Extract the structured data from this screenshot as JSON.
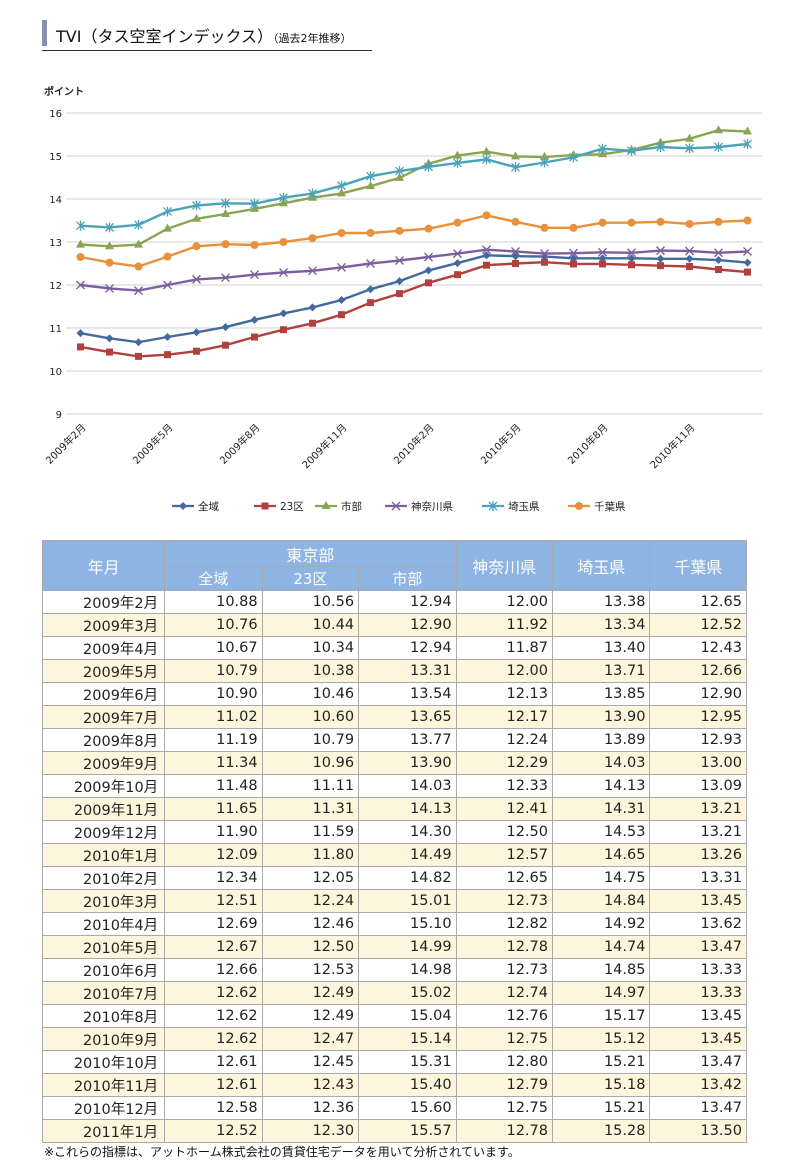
{
  "title": {
    "main": "TVI（タス空室インデックス）",
    "sub": "（過去2年推移）"
  },
  "chart_data": {
    "type": "line",
    "ylabel": "ポイント",
    "ylim": [
      9,
      16
    ],
    "yticks": [
      9,
      10,
      11,
      12,
      13,
      14,
      15,
      16
    ],
    "grid": true,
    "legend_position": "bottom",
    "x": [
      "2009年2月",
      "2009年3月",
      "2009年4月",
      "2009年5月",
      "2009年6月",
      "2009年7月",
      "2009年8月",
      "2009年9月",
      "2009年10月",
      "2009年11月",
      "2009年12月",
      "2010年1月",
      "2010年2月",
      "2010年3月",
      "2010年4月",
      "2010年5月",
      "2010年6月",
      "2010年7月",
      "2010年8月",
      "2010年9月",
      "2010年10月",
      "2010年11月",
      "2010年12月",
      "2011年1月"
    ],
    "xtick_labels": [
      "2009年2月",
      "2009年5月",
      "2009年8月",
      "2009年11月",
      "2010年2月",
      "2010年5月",
      "2010年8月",
      "2010年11月"
    ],
    "series": [
      {
        "name": "全域",
        "color": "#426a9c",
        "marker": "diamond",
        "values": [
          10.88,
          10.76,
          10.67,
          10.79,
          10.9,
          11.02,
          11.19,
          11.34,
          11.48,
          11.65,
          11.9,
          12.09,
          12.34,
          12.51,
          12.69,
          12.67,
          12.66,
          12.62,
          12.62,
          12.62,
          12.61,
          12.61,
          12.58,
          12.52
        ]
      },
      {
        "name": "23区",
        "color": "#b0413e",
        "marker": "square",
        "values": [
          10.56,
          10.44,
          10.34,
          10.38,
          10.46,
          10.6,
          10.79,
          10.96,
          11.11,
          11.31,
          11.59,
          11.8,
          12.05,
          12.24,
          12.46,
          12.5,
          12.53,
          12.49,
          12.49,
          12.47,
          12.45,
          12.43,
          12.36,
          12.3
        ]
      },
      {
        "name": "市部",
        "color": "#8aa552",
        "marker": "triangle",
        "values": [
          12.94,
          12.9,
          12.94,
          13.31,
          13.54,
          13.65,
          13.77,
          13.9,
          14.03,
          14.13,
          14.3,
          14.49,
          14.82,
          15.01,
          15.1,
          14.99,
          14.98,
          15.02,
          15.04,
          15.14,
          15.31,
          15.4,
          15.6,
          15.57
        ]
      },
      {
        "name": "神奈川県",
        "color": "#7b5f9e",
        "marker": "x",
        "values": [
          12.0,
          11.92,
          11.87,
          12.0,
          12.13,
          12.17,
          12.24,
          12.29,
          12.33,
          12.41,
          12.5,
          12.57,
          12.65,
          12.73,
          12.82,
          12.78,
          12.73,
          12.74,
          12.76,
          12.75,
          12.8,
          12.79,
          12.75,
          12.78
        ]
      },
      {
        "name": "埼玉県",
        "color": "#4aa3b8",
        "marker": "star",
        "values": [
          13.38,
          13.34,
          13.4,
          13.71,
          13.85,
          13.9,
          13.89,
          14.03,
          14.13,
          14.31,
          14.53,
          14.65,
          14.75,
          14.84,
          14.92,
          14.74,
          14.85,
          14.97,
          15.17,
          15.12,
          15.21,
          15.18,
          15.21,
          15.28
        ]
      },
      {
        "name": "千葉県",
        "color": "#e8913a",
        "marker": "circle",
        "values": [
          12.65,
          12.52,
          12.43,
          12.66,
          12.9,
          12.95,
          12.93,
          13.0,
          13.09,
          13.21,
          13.21,
          13.26,
          13.31,
          13.45,
          13.62,
          13.47,
          13.33,
          13.33,
          13.45,
          13.45,
          13.47,
          13.42,
          13.47,
          13.5
        ]
      }
    ]
  },
  "table": {
    "month_header": "年月",
    "tokyo_header": "東京部",
    "tokyo_sub": [
      "全域",
      "23区",
      "市部"
    ],
    "pref_headers": [
      "神奈川県",
      "埼玉県",
      "千葉県"
    ],
    "rows": [
      [
        "2009年2月",
        "10.88",
        "10.56",
        "12.94",
        "12.00",
        "13.38",
        "12.65"
      ],
      [
        "2009年3月",
        "10.76",
        "10.44",
        "12.90",
        "11.92",
        "13.34",
        "12.52"
      ],
      [
        "2009年4月",
        "10.67",
        "10.34",
        "12.94",
        "11.87",
        "13.40",
        "12.43"
      ],
      [
        "2009年5月",
        "10.79",
        "10.38",
        "13.31",
        "12.00",
        "13.71",
        "12.66"
      ],
      [
        "2009年6月",
        "10.90",
        "10.46",
        "13.54",
        "12.13",
        "13.85",
        "12.90"
      ],
      [
        "2009年7月",
        "11.02",
        "10.60",
        "13.65",
        "12.17",
        "13.90",
        "12.95"
      ],
      [
        "2009年8月",
        "11.19",
        "10.79",
        "13.77",
        "12.24",
        "13.89",
        "12.93"
      ],
      [
        "2009年9月",
        "11.34",
        "10.96",
        "13.90",
        "12.29",
        "14.03",
        "13.00"
      ],
      [
        "2009年10月",
        "11.48",
        "11.11",
        "14.03",
        "12.33",
        "14.13",
        "13.09"
      ],
      [
        "2009年11月",
        "11.65",
        "11.31",
        "14.13",
        "12.41",
        "14.31",
        "13.21"
      ],
      [
        "2009年12月",
        "11.90",
        "11.59",
        "14.30",
        "12.50",
        "14.53",
        "13.21"
      ],
      [
        "2010年1月",
        "12.09",
        "11.80",
        "14.49",
        "12.57",
        "14.65",
        "13.26"
      ],
      [
        "2010年2月",
        "12.34",
        "12.05",
        "14.82",
        "12.65",
        "14.75",
        "13.31"
      ],
      [
        "2010年3月",
        "12.51",
        "12.24",
        "15.01",
        "12.73",
        "14.84",
        "13.45"
      ],
      [
        "2010年4月",
        "12.69",
        "12.46",
        "15.10",
        "12.82",
        "14.92",
        "13.62"
      ],
      [
        "2010年5月",
        "12.67",
        "12.50",
        "14.99",
        "12.78",
        "14.74",
        "13.47"
      ],
      [
        "2010年6月",
        "12.66",
        "12.53",
        "14.98",
        "12.73",
        "14.85",
        "13.33"
      ],
      [
        "2010年7月",
        "12.62",
        "12.49",
        "15.02",
        "12.74",
        "14.97",
        "13.33"
      ],
      [
        "2010年8月",
        "12.62",
        "12.49",
        "15.04",
        "12.76",
        "15.17",
        "13.45"
      ],
      [
        "2010年9月",
        "12.62",
        "12.47",
        "15.14",
        "12.75",
        "15.12",
        "13.45"
      ],
      [
        "2010年10月",
        "12.61",
        "12.45",
        "15.31",
        "12.80",
        "15.21",
        "13.47"
      ],
      [
        "2010年11月",
        "12.61",
        "12.43",
        "15.40",
        "12.79",
        "15.18",
        "13.42"
      ],
      [
        "2010年12月",
        "12.58",
        "12.36",
        "15.60",
        "12.75",
        "15.21",
        "13.47"
      ],
      [
        "2011年1月",
        "12.52",
        "12.30",
        "15.57",
        "12.78",
        "15.28",
        "13.50"
      ]
    ]
  },
  "footnote": "※これらの指標は、アットホーム株式会社の賃貸住宅データを用いて分析されています。"
}
